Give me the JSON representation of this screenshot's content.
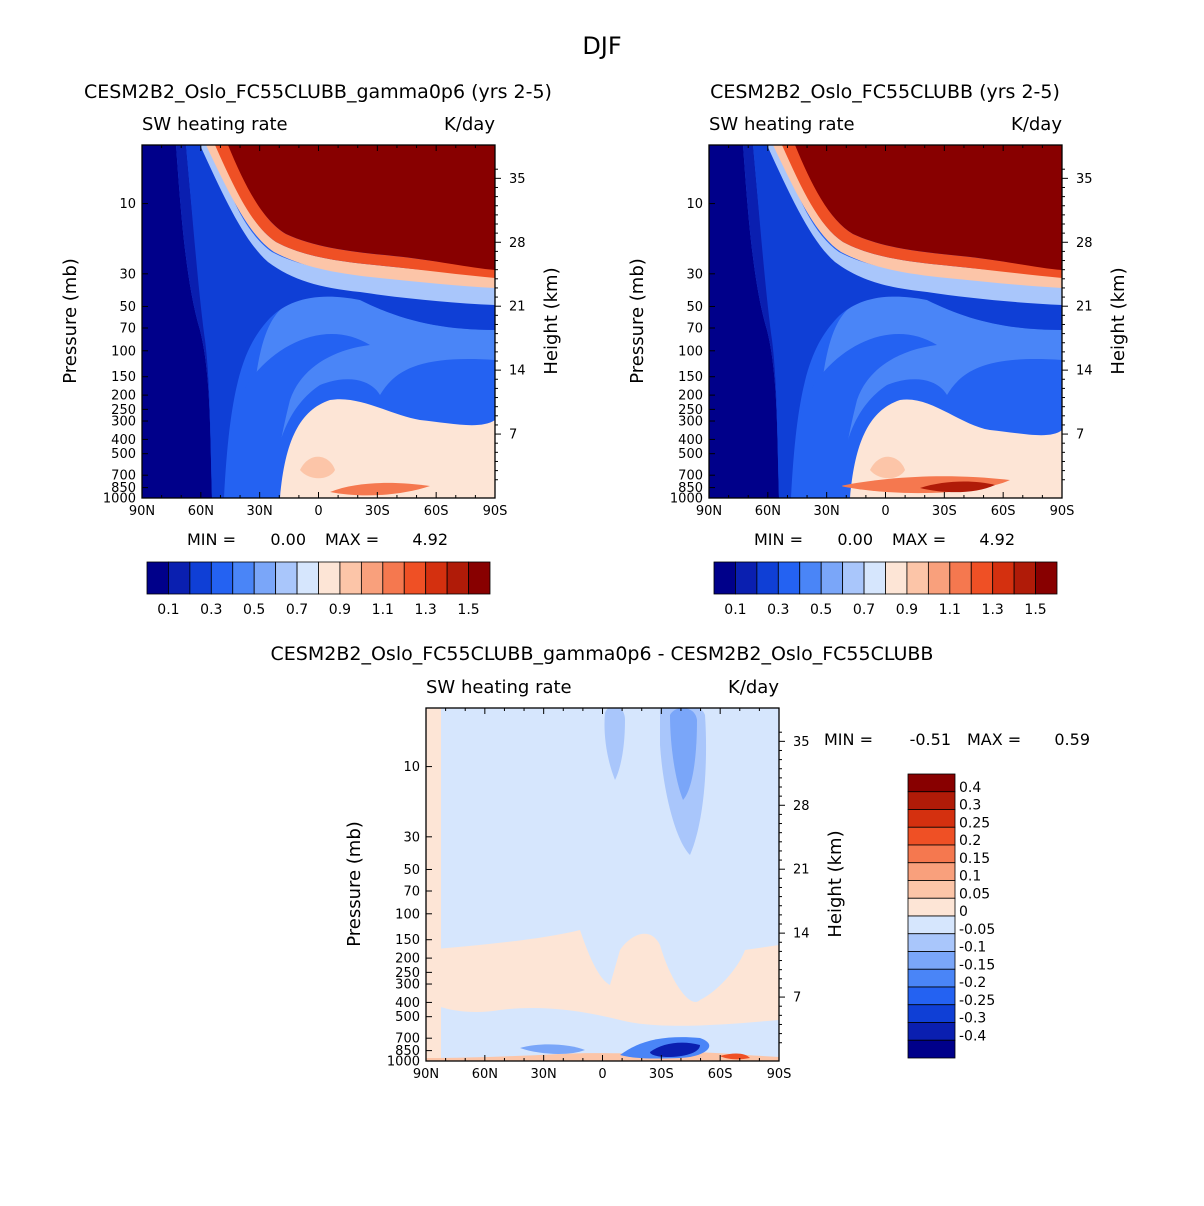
{
  "figure_title": "DJF",
  "chart_data": [
    {
      "type": "heatmap",
      "title": "CESM2B2_Oslo_FC55CLUBB_gamma0p6 (yrs 2-5)",
      "left_subtitle": "SW heating rate",
      "right_subtitle": "K/day",
      "xlabel": "",
      "ylabel": "Pressure (mb)",
      "y2label": "Height (km)",
      "x_ticks": [
        "90N",
        "60N",
        "30N",
        "0",
        "30S",
        "60S",
        "90S"
      ],
      "xlim": [
        90,
        -90
      ],
      "y_ticks": [
        "10",
        "30",
        "50",
        "70",
        "100",
        "150",
        "200",
        "250",
        "300",
        "400",
        "500",
        "700",
        "850",
        "1000"
      ],
      "y_tick_values": [
        10,
        30,
        50,
        70,
        100,
        150,
        200,
        250,
        300,
        400,
        500,
        700,
        850,
        1000
      ],
      "ylim": [
        4,
        1000
      ],
      "y2_ticks": [
        "35",
        "28",
        "21",
        "14",
        "7"
      ],
      "y2_tick_values": [
        35,
        28,
        21,
        14,
        7
      ],
      "min_label": "MIN =",
      "min_value": "0.00",
      "max_label": "MAX =",
      "max_value": "4.92",
      "contour_levels": [
        0.1,
        0.2,
        0.3,
        0.4,
        0.5,
        0.6,
        0.7,
        0.8,
        0.9,
        1.0,
        1.1,
        1.2,
        1.3,
        1.4,
        1.5
      ],
      "colorbar_labels": [
        "0.1",
        "0.3",
        "0.5",
        "0.7",
        "0.9",
        "1.1",
        "1.3",
        "1.5"
      ],
      "colors": [
        "#00008a",
        "#0a1fb0",
        "#0f3fd6",
        "#2462f2",
        "#4a85f7",
        "#7aa6f9",
        "#a9c6fb",
        "#d6e6fd",
        "#fde5d6",
        "#fcc5a8",
        "#f9a07c",
        "#f5784f",
        "#ef5025",
        "#d4300f",
        "#b01b08",
        "#880000"
      ]
    },
    {
      "type": "heatmap",
      "title": "CESM2B2_Oslo_FC55CLUBB (yrs 2-5)",
      "left_subtitle": "SW heating rate",
      "right_subtitle": "K/day",
      "xlabel": "",
      "ylabel": "Pressure (mb)",
      "y2label": "Height (km)",
      "x_ticks": [
        "90N",
        "60N",
        "30N",
        "0",
        "30S",
        "60S",
        "90S"
      ],
      "xlim": [
        90,
        -90
      ],
      "y_ticks": [
        "10",
        "30",
        "50",
        "70",
        "100",
        "150",
        "200",
        "250",
        "300",
        "400",
        "500",
        "700",
        "850",
        "1000"
      ],
      "y_tick_values": [
        10,
        30,
        50,
        70,
        100,
        150,
        200,
        250,
        300,
        400,
        500,
        700,
        850,
        1000
      ],
      "ylim": [
        4,
        1000
      ],
      "y2_ticks": [
        "35",
        "28",
        "21",
        "14",
        "7"
      ],
      "y2_tick_values": [
        35,
        28,
        21,
        14,
        7
      ],
      "min_label": "MIN =",
      "min_value": "0.00",
      "max_label": "MAX =",
      "max_value": "4.92",
      "contour_levels": [
        0.1,
        0.2,
        0.3,
        0.4,
        0.5,
        0.6,
        0.7,
        0.8,
        0.9,
        1.0,
        1.1,
        1.2,
        1.3,
        1.4,
        1.5
      ],
      "colorbar_labels": [
        "0.1",
        "0.3",
        "0.5",
        "0.7",
        "0.9",
        "1.1",
        "1.3",
        "1.5"
      ],
      "colors": [
        "#00008a",
        "#0a1fb0",
        "#0f3fd6",
        "#2462f2",
        "#4a85f7",
        "#7aa6f9",
        "#a9c6fb",
        "#d6e6fd",
        "#fde5d6",
        "#fcc5a8",
        "#f9a07c",
        "#f5784f",
        "#ef5025",
        "#d4300f",
        "#b01b08",
        "#880000"
      ]
    },
    {
      "type": "heatmap",
      "title": "CESM2B2_Oslo_FC55CLUBB_gamma0p6 - CESM2B2_Oslo_FC55CLUBB",
      "left_subtitle": "SW heating rate",
      "right_subtitle": "K/day",
      "xlabel": "",
      "ylabel": "Pressure (mb)",
      "y2label": "Height (km)",
      "x_ticks": [
        "90N",
        "60N",
        "30N",
        "0",
        "30S",
        "60S",
        "90S"
      ],
      "xlim": [
        90,
        -90
      ],
      "y_ticks": [
        "10",
        "30",
        "50",
        "70",
        "100",
        "150",
        "200",
        "250",
        "300",
        "400",
        "500",
        "700",
        "850",
        "1000"
      ],
      "y_tick_values": [
        10,
        30,
        50,
        70,
        100,
        150,
        200,
        250,
        300,
        400,
        500,
        700,
        850,
        1000
      ],
      "ylim": [
        4,
        1000
      ],
      "y2_ticks": [
        "35",
        "28",
        "21",
        "14",
        "7"
      ],
      "y2_tick_values": [
        35,
        28,
        21,
        14,
        7
      ],
      "min_label": "MIN =",
      "min_value": "-0.51",
      "max_label": "MAX =",
      "max_value": "0.59",
      "contour_levels": [
        -0.4,
        -0.3,
        -0.25,
        -0.2,
        -0.15,
        -0.1,
        -0.05,
        0,
        0.05,
        0.1,
        0.15,
        0.2,
        0.25,
        0.3,
        0.4
      ],
      "colorbar_labels": [
        "0.4",
        "0.3",
        "0.25",
        "0.2",
        "0.15",
        "0.1",
        "0.05",
        "0",
        "-0.05",
        "-0.1",
        "-0.15",
        "-0.2",
        "-0.25",
        "-0.3",
        "-0.4"
      ],
      "colors": [
        "#880000",
        "#b01b08",
        "#d4300f",
        "#ef5025",
        "#f5784f",
        "#f9a07c",
        "#fcc5a8",
        "#fde5d6",
        "#d6e6fd",
        "#a9c6fb",
        "#7aa6f9",
        "#4a85f7",
        "#2462f2",
        "#0f3fd6",
        "#0a1fb0",
        "#00008a"
      ]
    }
  ]
}
